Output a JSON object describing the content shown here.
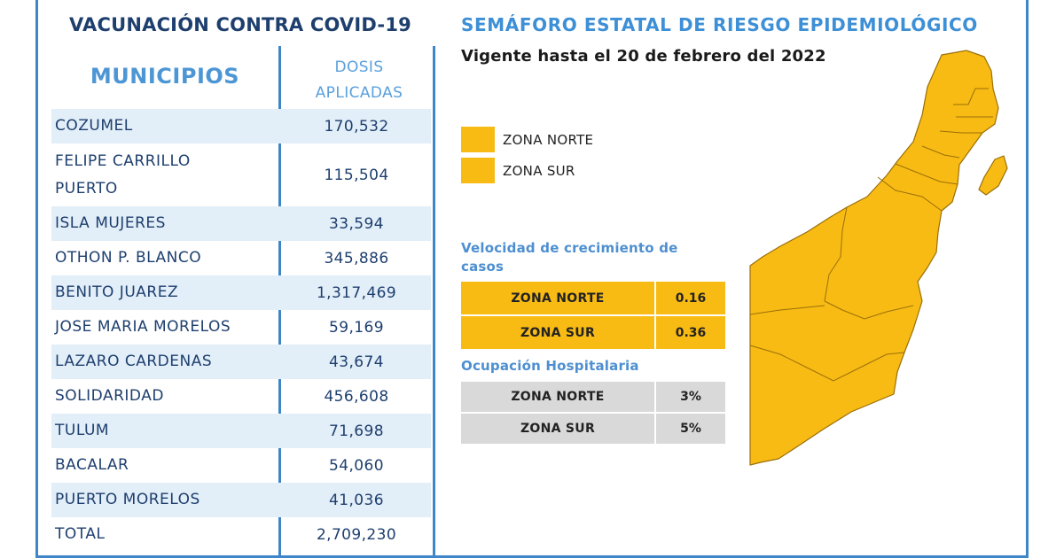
{
  "vaccination": {
    "title": "VACUNACIÓN CONTRA COVID-19",
    "col_municipios": "MUNICIPIOS",
    "col_dosis_line1": "DOSIS",
    "col_dosis_line2": "APLICADAS",
    "rows": [
      {
        "name": "COZUMEL",
        "doses": "170,532"
      },
      {
        "name": "FELIPE CARRILLO PUERTO",
        "doses": "115,504"
      },
      {
        "name": "ISLA MUJERES",
        "doses": "33,594"
      },
      {
        "name": "OTHON P. BLANCO",
        "doses": "345,886"
      },
      {
        "name": "BENITO JUAREZ",
        "doses": "1,317,469"
      },
      {
        "name": "JOSE MARIA MORELOS",
        "doses": "59,169"
      },
      {
        "name": "LAZARO CARDENAS",
        "doses": "43,674"
      },
      {
        "name": "SOLIDARIDAD",
        "doses": "456,608"
      },
      {
        "name": "TULUM",
        "doses": "71,698"
      },
      {
        "name": "BACALAR",
        "doses": "54,060"
      },
      {
        "name": "PUERTO MORELOS",
        "doses": "41,036"
      },
      {
        "name": "TOTAL",
        "doses": "2,709,230"
      }
    ]
  },
  "semaforo": {
    "title": "SEMÁFORO ESTATAL DE RIESGO EPIDEMIOLÓGICO",
    "subtitle": "Vigente hasta el 20 de febrero del 2022",
    "legend": [
      {
        "label": "ZONA NORTE",
        "color": "#f8bb14"
      },
      {
        "label": "ZONA SUR",
        "color": "#f8bb14"
      }
    ],
    "growth": {
      "label": "Velocidad de crecimiento de casos",
      "rows": [
        {
          "zone": "ZONA NORTE",
          "value": "0.16"
        },
        {
          "zone": "ZONA SUR",
          "value": "0.36"
        }
      ]
    },
    "hospital": {
      "label": "Ocupación Hospitalaria",
      "rows": [
        {
          "zone": "ZONA NORTE",
          "value": "3%"
        },
        {
          "zone": "ZONA SUR",
          "value": "5%"
        }
      ]
    },
    "map_color": "#f8bb14"
  },
  "colors": {
    "frame": "#3f86c9",
    "title_dark": "#1e3f6e",
    "title_blue": "#3d8fd6",
    "row_shade": "#e2eef8",
    "zone_yellow": "#f8bb14",
    "zone_gray": "#d9d9d9"
  }
}
